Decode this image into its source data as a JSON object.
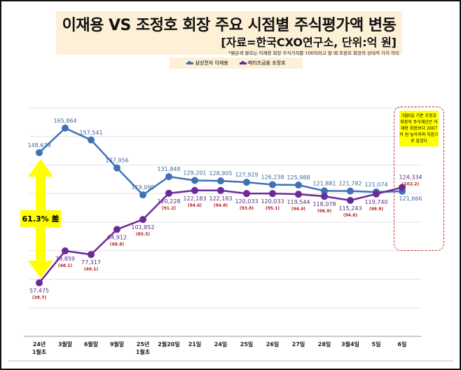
{
  "header": {
    "title": "이재용 VS 조정호 회장 주요 시점별 주식평가액 변동",
    "source": "[자료=한국CXO연구소, 단위:억 원]",
    "note": "*붉은색 괄호는 이재용 회장 주식가치를 100이라고 할 때 조정호 회장의 상대적 가치 의미"
  },
  "annotation": {
    "box_text": "3월6일 기준 조정호 회장의 주식재산은 이재용 회장보다 2667억 원 높아지며 처음으로 앞섰다",
    "gap_label": "61.3% 差"
  },
  "chart_data": {
    "type": "line",
    "categories": [
      "24년\n1월초",
      "3월말",
      "6월말",
      "9월말",
      "25년\n1월초",
      "2월20일",
      "21일",
      "24일",
      "25일",
      "26일",
      "27일",
      "28일",
      "3월4일",
      "5일",
      "6일"
    ],
    "ylim": [
      20000,
      180000
    ],
    "grid": true,
    "legend": "top-center",
    "series": [
      {
        "name": "삼성전자 이재용",
        "color": "#3f72b5",
        "values": [
          148673,
          165864,
          157541,
          137956,
          119099,
          131848,
          129201,
          128905,
          127929,
          126238,
          125988,
          121881,
          121782,
          121074,
          121666
        ]
      },
      {
        "name": "메리츠금융 조정호",
        "color": "#6a2a9a",
        "values": [
          57475,
          79859,
          77317,
          94912,
          101852,
          120228,
          122183,
          122183,
          120033,
          120033,
          119544,
          118078,
          115243,
          119740,
          124334
        ],
        "relative": [
          "(38.7)",
          "(48.1)",
          "(49.1)",
          "(68.8)",
          "(85.5)",
          "(91.2)",
          "(94.6)",
          "(94.8)",
          "(93.8)",
          "(95.1)",
          "(94.9)",
          "(96.9)",
          "(94.6)",
          "(98.9)",
          "(102.2)"
        ]
      }
    ]
  }
}
